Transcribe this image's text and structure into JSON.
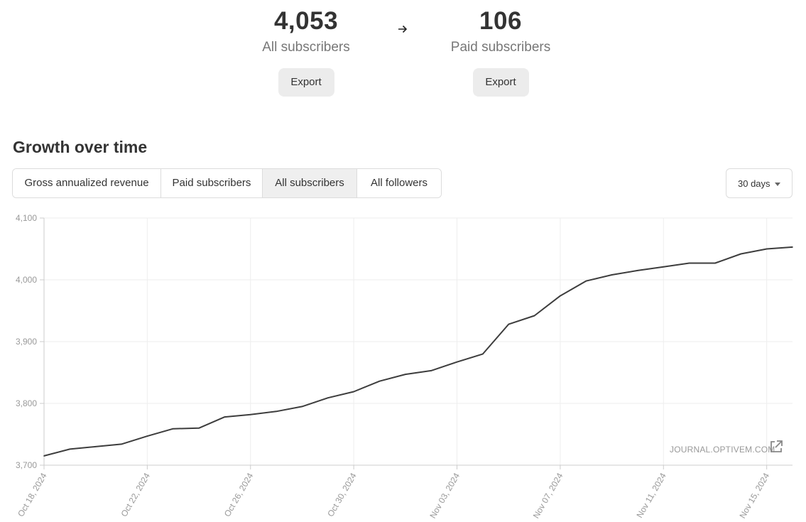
{
  "summary": {
    "all": {
      "value": "4,053",
      "label": "All subscribers",
      "export_label": "Export"
    },
    "arrow_icon": "arrow-right-icon",
    "paid": {
      "value": "106",
      "label": "Paid subscribers",
      "export_label": "Export"
    }
  },
  "section": {
    "title": "Growth over time"
  },
  "tabs": [
    {
      "label": "Gross annualized revenue",
      "active": false
    },
    {
      "label": "Paid subscribers",
      "active": false
    },
    {
      "label": "All subscribers",
      "active": true
    },
    {
      "label": "All followers",
      "active": false
    }
  ],
  "range_select": {
    "value": "30 days"
  },
  "watermark": {
    "text": "JOURNAL.OPTIVEM.COM",
    "icon": "external-link-icon"
  },
  "colors": {
    "line": "#3d3d3d",
    "grid": "#eeeeee",
    "axis": "#cccccc",
    "tick_text": "#999999",
    "active_tab": "#efefef"
  },
  "chart_data": {
    "type": "line",
    "y_ticks": [
      "3,700",
      "3,800",
      "3,900",
      "4,000",
      "4,100"
    ],
    "ylim": [
      3700,
      4100
    ],
    "x_ticks": [
      {
        "day": 0,
        "label": "Oct 18, 2024"
      },
      {
        "day": 4,
        "label": "Oct 22, 2024"
      },
      {
        "day": 8,
        "label": "Oct 26, 2024"
      },
      {
        "day": 12,
        "label": "Oct 30, 2024"
      },
      {
        "day": 16,
        "label": "Nov 03, 2024"
      },
      {
        "day": 20,
        "label": "Nov 07, 2024"
      },
      {
        "day": 24,
        "label": "Nov 11, 2024"
      },
      {
        "day": 28,
        "label": "Nov 15, 2024"
      }
    ],
    "xlim": [
      0,
      29
    ],
    "grid": true,
    "series": [
      {
        "values": [
          3715,
          3726,
          3730,
          3734,
          3747,
          3759,
          3760,
          3778,
          3782,
          3787,
          3795,
          3809,
          3819,
          3836,
          3847,
          3853,
          3867,
          3880,
          3928,
          3942,
          3974,
          3998,
          4008,
          4015,
          4021,
          4027,
          4027,
          4042,
          4050,
          4053
        ]
      }
    ]
  }
}
